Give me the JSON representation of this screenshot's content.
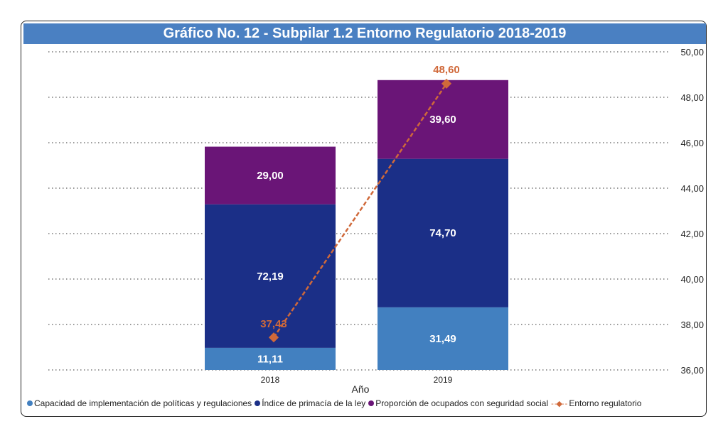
{
  "chart_data": {
    "type": "bar",
    "title": "Gráfico No. 12 - Subpilar 1.2 Entorno Regulatorio 2018-2019",
    "xlabel": "Año",
    "ylabel": "",
    "categories": [
      "2018",
      "2019"
    ],
    "stacked": true,
    "primary_ylim": [
      0,
      160
    ],
    "primary_axis_visible": false,
    "secondary_ylim": [
      36,
      50
    ],
    "secondary_ticks": [
      "36,00",
      "38,00",
      "40,00",
      "42,00",
      "44,00",
      "46,00",
      "48,00",
      "50,00"
    ],
    "grid": true,
    "legend_position": "bottom",
    "series": [
      {
        "name": "Capacidad de implementación de políticas y regulaciones",
        "type": "bar",
        "color": "#4280c0",
        "values": [
          11.11,
          31.49
        ],
        "labels": [
          "11,11",
          "31,49"
        ]
      },
      {
        "name": "Índice de primacía de la ley",
        "type": "bar",
        "color": "#1b2f87",
        "values": [
          72.19,
          74.7
        ],
        "labels": [
          "72,19",
          "74,70"
        ]
      },
      {
        "name": "Proporción de ocupados con seguridad social",
        "type": "bar",
        "color": "#6a1577",
        "values": [
          29.0,
          39.6
        ],
        "labels": [
          "29,00",
          "39,60"
        ]
      },
      {
        "name": "Entorno regulatorio",
        "type": "line",
        "axis": "secondary",
        "color": "#d0693a",
        "values": [
          37.43,
          48.6
        ],
        "labels": [
          "37,43",
          "48,60"
        ]
      }
    ]
  }
}
